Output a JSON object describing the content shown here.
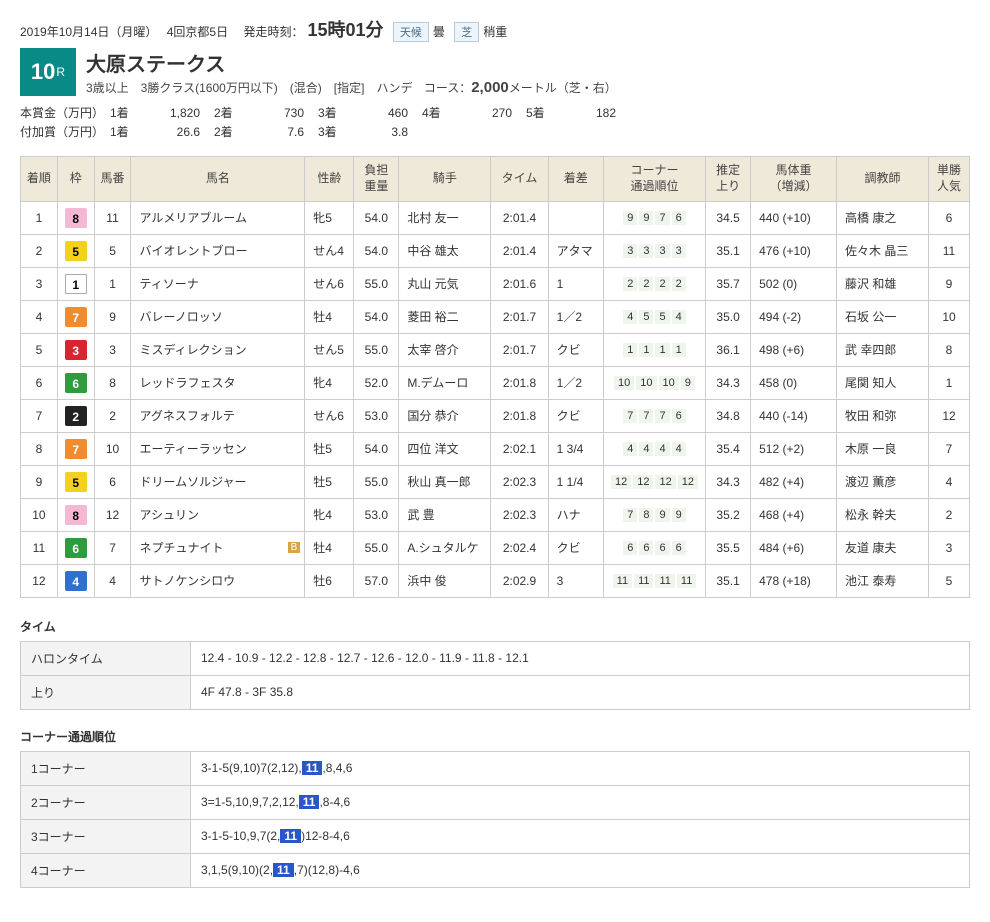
{
  "header": {
    "date": "2019年10月14日（月曜）",
    "meeting": "4回京都5日",
    "posttime_label": "発走時刻：",
    "posttime": "15時01分",
    "weather_label": "天候",
    "weather": "曇",
    "turf_label": "芝",
    "turf": "稍重"
  },
  "race": {
    "number": "10",
    "r": "R",
    "title": "大原ステークス",
    "sub": "3歳以上　3勝クラス(1600万円以下)　(混合)　[指定]　ハンデ",
    "course_label": "コース：",
    "course_val": "2,000",
    "course_suffix": "メートル（芝・右）"
  },
  "prize": {
    "main_label": "本賞金（万円）",
    "add_label": "付加賞（万円）",
    "main": [
      {
        "p": "1着",
        "v": "1,820"
      },
      {
        "p": "2着",
        "v": "730"
      },
      {
        "p": "3着",
        "v": "460"
      },
      {
        "p": "4着",
        "v": "270"
      },
      {
        "p": "5着",
        "v": "182"
      }
    ],
    "add": [
      {
        "p": "1着",
        "v": "26.6"
      },
      {
        "p": "2着",
        "v": "7.6"
      },
      {
        "p": "3着",
        "v": "3.8"
      }
    ]
  },
  "columns": [
    "着順",
    "枠",
    "馬番",
    "馬名",
    "性齢",
    "負担\n重量",
    "騎手",
    "タイム",
    "着差",
    "コーナー\n通過順位",
    "推定\n上り",
    "馬体重\n（増減）",
    "調教師",
    "単勝\n人気"
  ],
  "waku_colors": {
    "1": {
      "bg": "#ffffff",
      "fg": "#000",
      "border": "#aaa"
    },
    "2": {
      "bg": "#222222",
      "fg": "#fff",
      "border": "#222"
    },
    "3": {
      "bg": "#d8242f",
      "fg": "#fff",
      "border": "#d8242f"
    },
    "4": {
      "bg": "#2f6fd0",
      "fg": "#fff",
      "border": "#2f6fd0"
    },
    "5": {
      "bg": "#f2d21f",
      "fg": "#000",
      "border": "#f2d21f"
    },
    "6": {
      "bg": "#2e9b3e",
      "fg": "#fff",
      "border": "#2e9b3e"
    },
    "7": {
      "bg": "#f08c2e",
      "fg": "#fff",
      "border": "#f08c2e"
    },
    "8": {
      "bg": "#f5b8d4",
      "fg": "#000",
      "border": "#f5b8d4"
    }
  },
  "rows": [
    {
      "ord": "1",
      "waku": "8",
      "num": "11",
      "name": "アルメリアブルーム",
      "blinker": false,
      "sa": "牝5",
      "wt": "54.0",
      "jockey": "北村 友一",
      "time": "2:01.4",
      "margin": "",
      "corners": [
        "9",
        "9",
        "7",
        "6"
      ],
      "agari": "34.5",
      "body": "440 (+10)",
      "trainer": "高橋 康之",
      "pop": "6"
    },
    {
      "ord": "2",
      "waku": "5",
      "num": "5",
      "name": "バイオレントブロー",
      "blinker": false,
      "sa": "せん4",
      "wt": "54.0",
      "jockey": "中谷 雄太",
      "time": "2:01.4",
      "margin": "アタマ",
      "corners": [
        "3",
        "3",
        "3",
        "3"
      ],
      "agari": "35.1",
      "body": "476 (+10)",
      "trainer": "佐々木 晶三",
      "pop": "11"
    },
    {
      "ord": "3",
      "waku": "1",
      "num": "1",
      "name": "ティソーナ",
      "blinker": false,
      "sa": "せん6",
      "wt": "55.0",
      "jockey": "丸山 元気",
      "time": "2:01.6",
      "margin": "1",
      "corners": [
        "2",
        "2",
        "2",
        "2"
      ],
      "agari": "35.7",
      "body": "502 (0)",
      "trainer": "藤沢 和雄",
      "pop": "9"
    },
    {
      "ord": "4",
      "waku": "7",
      "num": "9",
      "name": "バレーノロッソ",
      "blinker": false,
      "sa": "牡4",
      "wt": "54.0",
      "jockey": "菱田 裕二",
      "time": "2:01.7",
      "margin": "1／2",
      "corners": [
        "4",
        "5",
        "5",
        "4"
      ],
      "agari": "35.0",
      "body": "494 (-2)",
      "trainer": "石坂 公一",
      "pop": "10"
    },
    {
      "ord": "5",
      "waku": "3",
      "num": "3",
      "name": "ミスディレクション",
      "blinker": false,
      "sa": "せん5",
      "wt": "55.0",
      "jockey": "太宰 啓介",
      "time": "2:01.7",
      "margin": "クビ",
      "corners": [
        "1",
        "1",
        "1",
        "1"
      ],
      "agari": "36.1",
      "body": "498 (+6)",
      "trainer": "武 幸四郎",
      "pop": "8"
    },
    {
      "ord": "6",
      "waku": "6",
      "num": "8",
      "name": "レッドラフェスタ",
      "blinker": false,
      "sa": "牝4",
      "wt": "52.0",
      "jockey": "M.デムーロ",
      "time": "2:01.8",
      "margin": "1／2",
      "corners": [
        "10",
        "10",
        "10",
        "9"
      ],
      "agari": "34.3",
      "body": "458 (0)",
      "trainer": "尾関 知人",
      "pop": "1"
    },
    {
      "ord": "7",
      "waku": "2",
      "num": "2",
      "name": "アグネスフォルテ",
      "blinker": false,
      "sa": "せん6",
      "wt": "53.0",
      "jockey": "国分 恭介",
      "time": "2:01.8",
      "margin": "クビ",
      "corners": [
        "7",
        "7",
        "7",
        "6"
      ],
      "agari": "34.8",
      "body": "440 (-14)",
      "trainer": "牧田 和弥",
      "pop": "12"
    },
    {
      "ord": "8",
      "waku": "7",
      "num": "10",
      "name": "エーティーラッセン",
      "blinker": false,
      "sa": "牡5",
      "wt": "54.0",
      "jockey": "四位 洋文",
      "time": "2:02.1",
      "margin": "1 3/4",
      "corners": [
        "4",
        "4",
        "4",
        "4"
      ],
      "agari": "35.4",
      "body": "512 (+2)",
      "trainer": "木原 一良",
      "pop": "7"
    },
    {
      "ord": "9",
      "waku": "5",
      "num": "6",
      "name": "ドリームソルジャー",
      "blinker": false,
      "sa": "牡5",
      "wt": "55.0",
      "jockey": "秋山 真一郎",
      "time": "2:02.3",
      "margin": "1 1/4",
      "corners": [
        "12",
        "12",
        "12",
        "12"
      ],
      "agari": "34.3",
      "body": "482 (+4)",
      "trainer": "渡辺 薫彦",
      "pop": "4"
    },
    {
      "ord": "10",
      "waku": "8",
      "num": "12",
      "name": "アシュリン",
      "blinker": false,
      "sa": "牝4",
      "wt": "53.0",
      "jockey": "武 豊",
      "time": "2:02.3",
      "margin": "ハナ",
      "corners": [
        "7",
        "8",
        "9",
        "9"
      ],
      "agari": "35.2",
      "body": "468 (+4)",
      "trainer": "松永 幹夫",
      "pop": "2"
    },
    {
      "ord": "11",
      "waku": "6",
      "num": "7",
      "name": "ネプチュナイト",
      "blinker": true,
      "sa": "牡4",
      "wt": "55.0",
      "jockey": "A.シュタルケ",
      "time": "2:02.4",
      "margin": "クビ",
      "corners": [
        "6",
        "6",
        "6",
        "6"
      ],
      "agari": "35.5",
      "body": "484 (+6)",
      "trainer": "友道 康夫",
      "pop": "3"
    },
    {
      "ord": "12",
      "waku": "4",
      "num": "4",
      "name": "サトノケンシロウ",
      "blinker": false,
      "sa": "牡6",
      "wt": "57.0",
      "jockey": "浜中 俊",
      "time": "2:02.9",
      "margin": "3",
      "corners": [
        "11",
        "11",
        "11",
        "11"
      ],
      "agari": "35.1",
      "body": "478 (+18)",
      "trainer": "池江 泰寿",
      "pop": "5"
    }
  ],
  "time_section": {
    "title": "タイム",
    "rows": [
      {
        "label": "ハロンタイム",
        "val": "12.4 - 10.9 - 12.2 - 12.8 - 12.7 - 12.6 - 12.0 - 11.9 - 11.8 - 12.1"
      },
      {
        "label": "上り",
        "val": "4F 47.8 - 3F 35.8"
      }
    ]
  },
  "corner_section": {
    "title": "コーナー通過順位",
    "hl": "11",
    "rows": [
      {
        "label": "1コーナー",
        "pre": "3-1-5(9,10)7(2,12),",
        "post": ",8,4,6"
      },
      {
        "label": "2コーナー",
        "pre": "3=1-5,10,9,7,2,12,",
        "post": ",8-4,6"
      },
      {
        "label": "3コーナー",
        "pre": "3-1-5-10,9,7(2,",
        "post": ")12-8-4,6"
      },
      {
        "label": "4コーナー",
        "pre": "3,1,5(9,10)(2,",
        "post": ",7)(12,8)-4,6"
      }
    ]
  }
}
